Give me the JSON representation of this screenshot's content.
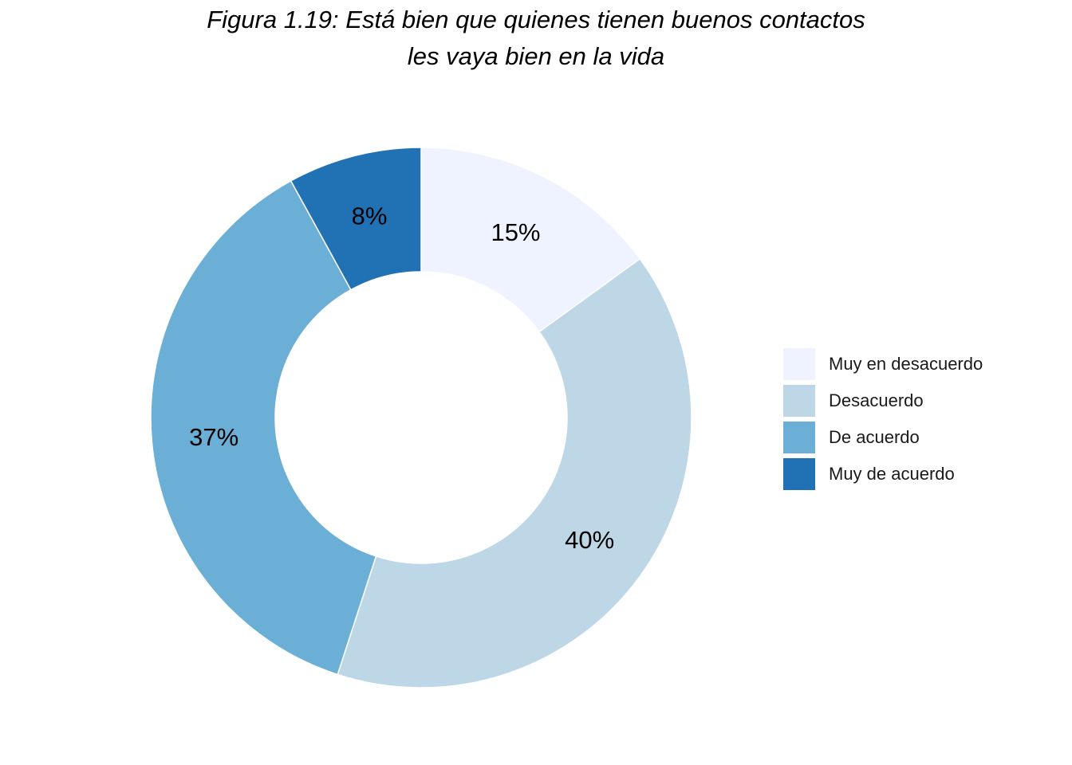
{
  "chart_data": {
    "type": "pie",
    "subtype": "donut",
    "title_lines": [
      "Figura 1.19: Está bien que quienes tienen buenos contactos",
      "les vaya bien en la vida"
    ],
    "categories": [
      "Muy en desacuerdo",
      "Desacuerdo",
      "De acuerdo",
      "Muy de acuerdo"
    ],
    "values": [
      15,
      40,
      37,
      8
    ],
    "labels": [
      "15%",
      "40%",
      "37%",
      "8%"
    ],
    "colors": [
      "#eff3ff",
      "#bdd7e7",
      "#6baed6",
      "#2171b5"
    ],
    "legend_position": "right",
    "start": "top",
    "direction": "clockwise"
  }
}
